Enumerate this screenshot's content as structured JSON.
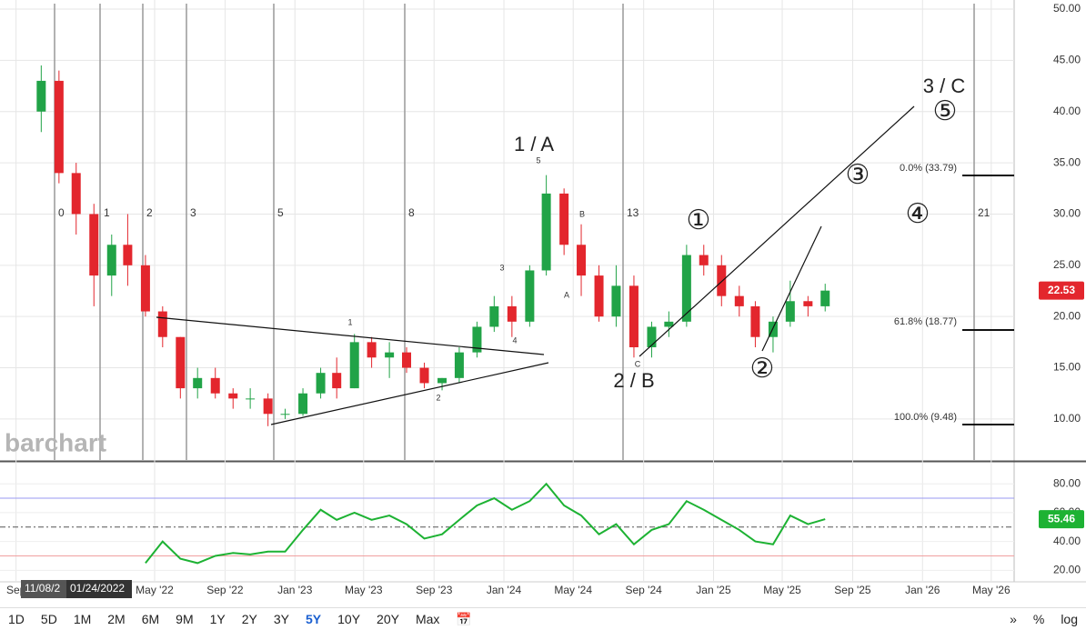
{
  "chart_data": {
    "type": "candlestick",
    "x": [
      "2021-10-15",
      "2021-11-15",
      "2021-12-15",
      "2022-01-15",
      "2022-02-15",
      "2022-03-15",
      "2022-04-15",
      "2022-05-15",
      "2022-06-15",
      "2022-07-15",
      "2022-08-15",
      "2022-09-15",
      "2022-10-15",
      "2022-11-15",
      "2022-12-15",
      "2023-01-15",
      "2023-02-15",
      "2023-03-15",
      "2023-04-15",
      "2023-05-15",
      "2023-06-15",
      "2023-07-15",
      "2023-08-15",
      "2023-09-15",
      "2023-10-15",
      "2023-11-15",
      "2023-12-15",
      "2024-01-15",
      "2024-02-15",
      "2024-03-15",
      "2024-04-15",
      "2024-05-15",
      "2024-06-15",
      "2024-07-15",
      "2024-08-15",
      "2024-09-15",
      "2024-10-15",
      "2024-11-15",
      "2024-12-15",
      "2025-01-15",
      "2025-02-15",
      "2025-03-15",
      "2025-04-15",
      "2025-05-15",
      "2025-06-15",
      "2025-07-15"
    ],
    "open": [
      40,
      43,
      34,
      30,
      24,
      27,
      25,
      20.5,
      18,
      13,
      14,
      12.5,
      12,
      12,
      10.5,
      10.5,
      12.5,
      14.5,
      13,
      17.5,
      16,
      16.5,
      15,
      13.5,
      14,
      16.5,
      19,
      21,
      19.5,
      24.5,
      32,
      27,
      24,
      20,
      23,
      17,
      19,
      19.5,
      26,
      25,
      22,
      21,
      18,
      19.5,
      21.5,
      21
    ],
    "high": [
      44.5,
      44,
      35,
      31,
      28,
      30,
      26,
      21,
      18,
      15,
      15,
      13,
      13,
      12.5,
      11,
      13,
      15,
      16,
      18.3,
      18,
      17.5,
      17,
      15.5,
      14,
      17,
      19.5,
      22,
      22,
      25,
      33.8,
      32.5,
      29,
      25,
      25,
      24,
      19.5,
      20.5,
      27,
      27,
      26,
      23,
      21.5,
      20,
      23.5,
      22,
      23.2
    ],
    "low": [
      38,
      33,
      28,
      21,
      22,
      23,
      20,
      17,
      12,
      12,
      12,
      11,
      11,
      9.3,
      10,
      10.3,
      12,
      12,
      13,
      15,
      14,
      14.5,
      13,
      12.8,
      13.5,
      16,
      18.5,
      18,
      19,
      24,
      26,
      22,
      19.5,
      19,
      16,
      16,
      18,
      19,
      24,
      21,
      20,
      17,
      16.5,
      19,
      20,
      20.5
    ],
    "close": [
      43,
      34,
      30,
      24,
      27,
      25,
      20.5,
      18,
      13,
      14,
      12.5,
      12,
      12,
      10.5,
      10.5,
      12.5,
      14.5,
      13,
      17.5,
      16,
      16.5,
      15,
      13.5,
      14,
      16.5,
      19,
      21,
      19.5,
      24.5,
      32,
      27,
      24,
      20,
      23,
      17,
      19,
      19.5,
      26,
      25,
      22,
      21,
      18,
      19.5,
      21.5,
      21,
      22.53
    ],
    "up_color": "#21a347",
    "down_color": "#e3262d",
    "xlim": [
      "2021-08-04",
      "2026-06-10"
    ],
    "xticks": [
      {
        "value": "2021-09-01",
        "label": "Sep"
      },
      {
        "value": "2022-05-01",
        "label": "May '22"
      },
      {
        "value": "2022-09-01",
        "label": "Sep '22"
      },
      {
        "value": "2023-01-01",
        "label": "Jan '23"
      },
      {
        "value": "2023-05-01",
        "label": "May '23"
      },
      {
        "value": "2023-09-01",
        "label": "Sep '23"
      },
      {
        "value": "2024-01-01",
        "label": "Jan '24"
      },
      {
        "value": "2024-05-01",
        "label": "May '24"
      },
      {
        "value": "2024-09-01",
        "label": "Sep '24"
      },
      {
        "value": "2025-01-01",
        "label": "Jan '25"
      },
      {
        "value": "2025-05-01",
        "label": "May '25"
      },
      {
        "value": "2025-09-01",
        "label": "Sep '25"
      },
      {
        "value": "2026-01-01",
        "label": "Jan '26"
      },
      {
        "value": "2026-05-01",
        "label": "May '26"
      }
    ],
    "ylim": [
      6,
      50
    ],
    "yticks": [
      {
        "value": 10,
        "label": "10.00"
      },
      {
        "value": 15,
        "label": "15.00"
      },
      {
        "value": 20,
        "label": "20.00"
      },
      {
        "value": 25,
        "label": "25.00"
      },
      {
        "value": 30,
        "label": "30.00"
      },
      {
        "value": 35,
        "label": "35.00"
      },
      {
        "value": 40,
        "label": "40.00"
      },
      {
        "value": 45,
        "label": "45.00"
      },
      {
        "value": 50,
        "label": "50.00"
      }
    ],
    "grid": true,
    "last_price": 22.53,
    "fib_labels": [
      "0.0% (33.79)",
      "61.8% (18.77)",
      "100.0% (9.48)"
    ],
    "time_cycles": [
      0,
      1,
      2,
      3,
      5,
      8,
      13,
      21
    ],
    "wave_labels": [
      "1 / A",
      "2 / B",
      "3 / C",
      "①",
      "②",
      "③",
      "④",
      "⑤"
    ],
    "small_labels": [
      "5",
      "B",
      "A",
      "C",
      "3",
      "4",
      "1",
      "2"
    ],
    "rsi": {
      "type": "line",
      "color": "#1db233",
      "values": [
        null,
        null,
        null,
        null,
        null,
        null,
        25,
        40,
        28,
        25,
        30,
        32,
        31,
        33,
        33,
        48,
        62,
        55,
        60,
        55,
        58,
        52,
        42,
        45,
        55,
        65,
        70,
        62,
        68,
        80,
        65,
        58,
        45,
        52,
        38,
        48,
        52,
        68,
        62,
        55,
        48,
        40,
        38,
        58,
        52,
        55.46
      ],
      "ylim": [
        12,
        94
      ],
      "yticks": [
        {
          "value": 20,
          "label": "20.00"
        },
        {
          "value": 40,
          "label": "40.00"
        },
        {
          "value": 60,
          "label": "60.00"
        },
        {
          "value": 80,
          "label": "80.00"
        }
      ],
      "overbought": 70,
      "oversold": 30,
      "midline": 50,
      "last": 55.46
    }
  },
  "watermark": "barchart",
  "cursor_labels": [
    "11/08/2",
    "01/24/2022"
  ],
  "toolbar": {
    "ranges": [
      "1D",
      "5D",
      "1M",
      "2M",
      "6M",
      "9M",
      "1Y",
      "2Y",
      "3Y",
      "5Y",
      "10Y",
      "20Y",
      "Max"
    ],
    "active": "5Y",
    "calendar": "📅",
    "right": [
      "»",
      "%",
      "log"
    ]
  }
}
